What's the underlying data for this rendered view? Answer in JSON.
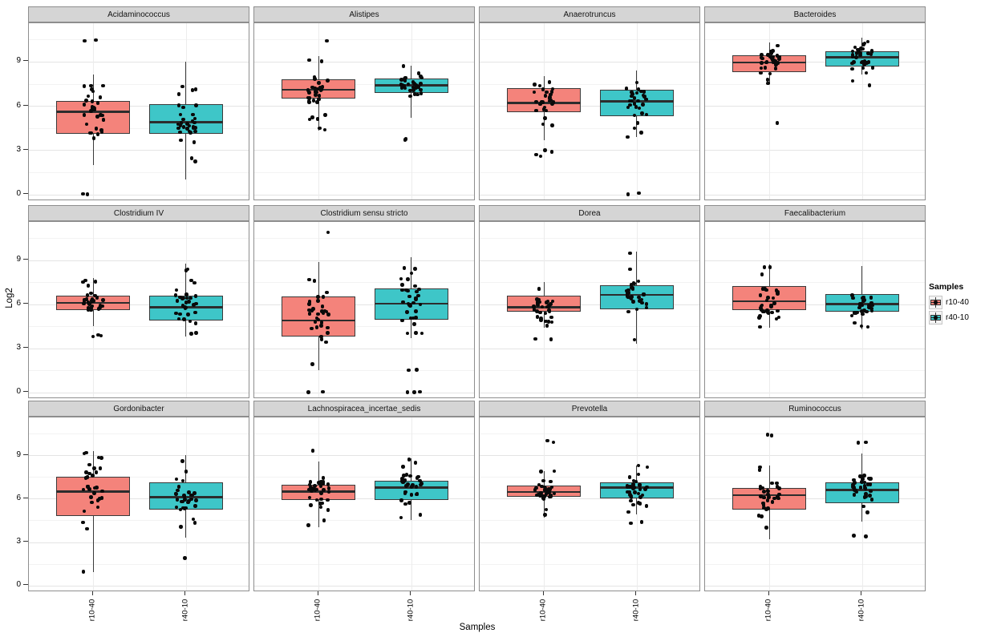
{
  "figure": {
    "y_axis_title": "Log2",
    "x_axis_title": "Samples",
    "y_ticks": [
      9,
      6,
      3,
      0
    ],
    "x_categories": [
      "r10-40",
      "r40-10"
    ],
    "colors": {
      "r10-40": "#F4837B",
      "r40-10": "#3EC6C8"
    },
    "legend": {
      "title": "Samples",
      "entries": [
        {
          "label": "r10-40",
          "color": "#F4837B"
        },
        {
          "label": "r40-10",
          "color": "#3EC6C8"
        }
      ]
    }
  },
  "chart_data": {
    "type": "boxplot-facets",
    "facet_layout": [
      3,
      4
    ],
    "ylim": [
      -0.45,
      11.6
    ],
    "y_ticks": [
      0,
      3,
      6,
      9
    ],
    "ylabel": "Log2",
    "xlabel": "Samples",
    "categories": [
      "r10-40",
      "r40-10"
    ],
    "legend_position": "right",
    "grid": true,
    "facets": [
      {
        "title": "Acidaminococcus",
        "groups": [
          {
            "sample": "r10-40",
            "low": 2.0,
            "q1": 4.1,
            "median": 5.6,
            "q3": 6.35,
            "high": 8.1,
            "outliers": [
              10.45,
              10.4,
              0,
              0.05
            ],
            "n_points": 32
          },
          {
            "sample": "r40-10",
            "low": 1.0,
            "q1": 4.1,
            "median": 4.9,
            "q3": 6.1,
            "high": 9.0,
            "outliers": [],
            "n_points": 32
          }
        ]
      },
      {
        "title": "Alistipes",
        "groups": [
          {
            "sample": "r10-40",
            "low": 4.3,
            "q1": 6.5,
            "median": 7.1,
            "q3": 7.8,
            "high": 9.4,
            "outliers": [
              10.4
            ],
            "n_points": 32
          },
          {
            "sample": "r40-10",
            "low": 5.2,
            "q1": 6.9,
            "median": 7.4,
            "q3": 7.85,
            "high": 8.7,
            "outliers": [
              3.7,
              3.75
            ],
            "n_points": 32
          }
        ]
      },
      {
        "title": "Anaerotruncus",
        "groups": [
          {
            "sample": "r10-40",
            "low": 3.7,
            "q1": 5.6,
            "median": 6.2,
            "q3": 7.2,
            "high": 8.0,
            "outliers": [
              3.0,
              2.9,
              2.7,
              2.6
            ],
            "n_points": 30
          },
          {
            "sample": "r40-10",
            "low": 3.9,
            "q1": 5.3,
            "median": 6.3,
            "q3": 7.1,
            "high": 8.4,
            "outliers": [
              0,
              0.1
            ],
            "n_points": 30
          }
        ]
      },
      {
        "title": "Bacteroides",
        "groups": [
          {
            "sample": "r10-40",
            "low": 7.5,
            "q1": 8.3,
            "median": 8.95,
            "q3": 9.45,
            "high": 10.3,
            "outliers": [
              4.85
            ],
            "n_points": 32
          },
          {
            "sample": "r40-10",
            "low": 8.1,
            "q1": 8.65,
            "median": 9.3,
            "q3": 9.7,
            "high": 10.6,
            "outliers": [
              7.7,
              7.4
            ],
            "n_points": 32
          }
        ]
      },
      {
        "title": "Clostridium IV",
        "groups": [
          {
            "sample": "r10-40",
            "low": 4.5,
            "q1": 5.6,
            "median": 6.1,
            "q3": 6.6,
            "high": 7.8,
            "outliers": [
              3.9,
              3.85,
              3.8
            ],
            "n_points": 32
          },
          {
            "sample": "r40-10",
            "low": 3.8,
            "q1": 4.9,
            "median": 5.8,
            "q3": 6.6,
            "high": 8.75,
            "outliers": [],
            "n_points": 32
          }
        ]
      },
      {
        "title": "Clostridium sensu stricto",
        "groups": [
          {
            "sample": "r10-40",
            "low": 1.5,
            "q1": 3.8,
            "median": 4.9,
            "q3": 6.55,
            "high": 8.9,
            "outliers": [
              10.9,
              0,
              0.05
            ],
            "n_points": 32
          },
          {
            "sample": "r40-10",
            "low": 3.7,
            "q1": 4.95,
            "median": 6.05,
            "q3": 7.1,
            "high": 9.2,
            "outliers": [
              1.5,
              1.55,
              0,
              0,
              0.05
            ],
            "n_points": 32
          }
        ]
      },
      {
        "title": "Dorea",
        "groups": [
          {
            "sample": "r10-40",
            "low": 4.4,
            "q1": 5.5,
            "median": 5.8,
            "q3": 6.6,
            "high": 7.5,
            "outliers": [
              3.6,
              3.65
            ],
            "n_points": 32
          },
          {
            "sample": "r40-10",
            "low": 3.3,
            "q1": 5.65,
            "median": 6.65,
            "q3": 7.3,
            "high": 9.6,
            "outliers": [],
            "n_points": 32
          }
        ]
      },
      {
        "title": "Faecalibacterium",
        "groups": [
          {
            "sample": "r10-40",
            "low": 4.4,
            "q1": 5.6,
            "median": 6.2,
            "q3": 7.25,
            "high": 8.7,
            "outliers": [],
            "n_points": 32
          },
          {
            "sample": "r40-10",
            "low": 4.3,
            "q1": 5.5,
            "median": 6.0,
            "q3": 6.7,
            "high": 8.6,
            "outliers": [],
            "n_points": 32
          }
        ]
      },
      {
        "title": "Gordonibacter",
        "groups": [
          {
            "sample": "r10-40",
            "low": 0.95,
            "q1": 4.8,
            "median": 6.5,
            "q3": 7.5,
            "high": 9.3,
            "outliers": [],
            "n_points": 33
          },
          {
            "sample": "r40-10",
            "low": 3.3,
            "q1": 5.25,
            "median": 6.1,
            "q3": 7.1,
            "high": 9.0,
            "outliers": [
              1.9
            ],
            "n_points": 33
          }
        ]
      },
      {
        "title": "Lachnospiracea_incertae_sedis",
        "groups": [
          {
            "sample": "r10-40",
            "low": 4.0,
            "q1": 5.9,
            "median": 6.5,
            "q3": 6.95,
            "high": 8.55,
            "outliers": [
              9.3
            ],
            "n_points": 33
          },
          {
            "sample": "r40-10",
            "low": 4.5,
            "q1": 5.9,
            "median": 6.75,
            "q3": 7.25,
            "high": 8.8,
            "outliers": [],
            "n_points": 33
          }
        ]
      },
      {
        "title": "Prevotella",
        "groups": [
          {
            "sample": "r10-40",
            "low": 4.7,
            "q1": 6.15,
            "median": 6.45,
            "q3": 6.9,
            "high": 7.9,
            "outliers": [
              9.9,
              10.0
            ],
            "n_points": 33
          },
          {
            "sample": "r40-10",
            "low": 4.9,
            "q1": 6.0,
            "median": 6.75,
            "q3": 7.1,
            "high": 8.3,
            "outliers": [
              4.3,
              4.4
            ],
            "n_points": 33
          }
        ]
      },
      {
        "title": "Ruminococcus",
        "groups": [
          {
            "sample": "r10-40",
            "low": 3.2,
            "q1": 5.25,
            "median": 6.25,
            "q3": 6.75,
            "high": 8.3,
            "outliers": [
              10.4,
              10.35
            ],
            "n_points": 33
          },
          {
            "sample": "r40-10",
            "low": 4.4,
            "q1": 5.7,
            "median": 6.6,
            "q3": 7.15,
            "high": 9.1,
            "outliers": [
              9.9,
              9.85,
              3.4,
              3.45
            ],
            "n_points": 33
          }
        ]
      }
    ]
  }
}
